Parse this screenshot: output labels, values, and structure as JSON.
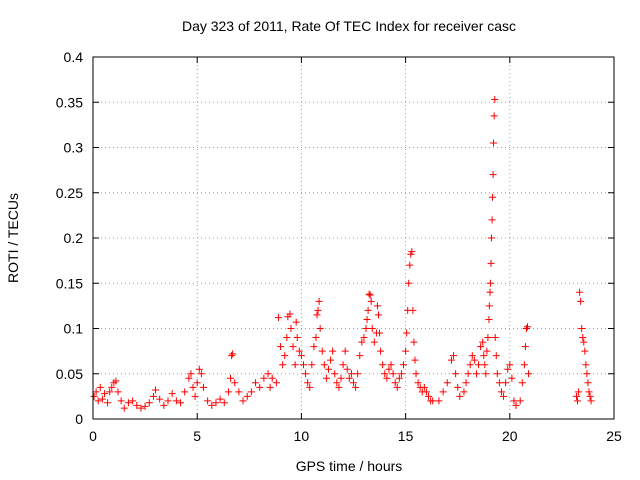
{
  "chart_data": {
    "type": "scatter",
    "title": "Day 323 of 2011, Rate Of TEC Index for receiver casc",
    "xlabel": "GPS time / hours",
    "ylabel": "ROTI / TECUs",
    "xlim": [
      0,
      25
    ],
    "ylim": [
      0,
      0.4
    ],
    "x_ticks": [
      0,
      5,
      10,
      15,
      20,
      25
    ],
    "x_tick_labels": [
      "0",
      "5",
      "10",
      "15",
      "20",
      "25"
    ],
    "y_ticks": [
      0,
      0.05,
      0.1,
      0.15,
      0.2,
      0.25,
      0.3,
      0.35,
      0.4
    ],
    "y_tick_labels": [
      "0",
      "0.05",
      "0.1",
      "0.15",
      "0.2",
      "0.25",
      "0.3",
      "0.35",
      "0.4"
    ],
    "grid": true,
    "marker": "plus",
    "color": "#ff0000",
    "points": [
      [
        0.05,
        0.025
      ],
      [
        0.15,
        0.03
      ],
      [
        0.25,
        0.02
      ],
      [
        0.35,
        0.035
      ],
      [
        0.45,
        0.022
      ],
      [
        0.55,
        0.028
      ],
      [
        0.7,
        0.018
      ],
      [
        0.8,
        0.03
      ],
      [
        0.9,
        0.035
      ],
      [
        1.0,
        0.04
      ],
      [
        1.1,
        0.042
      ],
      [
        1.2,
        0.03
      ],
      [
        1.35,
        0.02
      ],
      [
        1.5,
        0.012
      ],
      [
        1.7,
        0.018
      ],
      [
        1.9,
        0.02
      ],
      [
        2.1,
        0.015
      ],
      [
        2.3,
        0.012
      ],
      [
        2.5,
        0.014
      ],
      [
        2.7,
        0.018
      ],
      [
        2.9,
        0.025
      ],
      [
        3.0,
        0.032
      ],
      [
        3.2,
        0.022
      ],
      [
        3.4,
        0.015
      ],
      [
        3.6,
        0.02
      ],
      [
        3.8,
        0.028
      ],
      [
        4.0,
        0.02
      ],
      [
        4.2,
        0.018
      ],
      [
        4.4,
        0.03
      ],
      [
        4.6,
        0.045
      ],
      [
        4.7,
        0.05
      ],
      [
        4.8,
        0.035
      ],
      [
        4.9,
        0.025
      ],
      [
        5.0,
        0.04
      ],
      [
        5.1,
        0.055
      ],
      [
        5.2,
        0.05
      ],
      [
        5.3,
        0.035
      ],
      [
        5.5,
        0.02
      ],
      [
        5.7,
        0.015
      ],
      [
        5.9,
        0.018
      ],
      [
        6.1,
        0.022
      ],
      [
        6.3,
        0.018
      ],
      [
        6.5,
        0.03
      ],
      [
        6.6,
        0.045
      ],
      [
        6.65,
        0.07
      ],
      [
        6.7,
        0.072
      ],
      [
        6.8,
        0.04
      ],
      [
        7.0,
        0.03
      ],
      [
        7.2,
        0.02
      ],
      [
        7.4,
        0.025
      ],
      [
        7.6,
        0.03
      ],
      [
        7.8,
        0.04
      ],
      [
        8.0,
        0.035
      ],
      [
        8.2,
        0.045
      ],
      [
        8.4,
        0.05
      ],
      [
        8.5,
        0.035
      ],
      [
        8.6,
        0.045
      ],
      [
        8.8,
        0.04
      ],
      [
        8.9,
        0.112
      ],
      [
        9.0,
        0.08
      ],
      [
        9.1,
        0.06
      ],
      [
        9.2,
        0.07
      ],
      [
        9.3,
        0.09
      ],
      [
        9.35,
        0.113
      ],
      [
        9.45,
        0.116
      ],
      [
        9.5,
        0.1
      ],
      [
        9.6,
        0.08
      ],
      [
        9.7,
        0.06
      ],
      [
        9.75,
        0.107
      ],
      [
        9.8,
        0.09
      ],
      [
        9.9,
        0.075
      ],
      [
        10.0,
        0.07
      ],
      [
        10.1,
        0.06
      ],
      [
        10.2,
        0.05
      ],
      [
        10.3,
        0.04
      ],
      [
        10.4,
        0.035
      ],
      [
        10.5,
        0.06
      ],
      [
        10.6,
        0.08
      ],
      [
        10.7,
        0.09
      ],
      [
        10.75,
        0.115
      ],
      [
        10.8,
        0.12
      ],
      [
        10.85,
        0.13
      ],
      [
        10.9,
        0.1
      ],
      [
        11.0,
        0.075
      ],
      [
        11.1,
        0.06
      ],
      [
        11.2,
        0.045
      ],
      [
        11.3,
        0.055
      ],
      [
        11.4,
        0.065
      ],
      [
        11.5,
        0.075
      ],
      [
        11.6,
        0.05
      ],
      [
        11.7,
        0.04
      ],
      [
        11.8,
        0.035
      ],
      [
        11.9,
        0.045
      ],
      [
        12.0,
        0.06
      ],
      [
        12.1,
        0.075
      ],
      [
        12.2,
        0.055
      ],
      [
        12.3,
        0.045
      ],
      [
        12.4,
        0.05
      ],
      [
        12.5,
        0.04
      ],
      [
        12.6,
        0.035
      ],
      [
        12.7,
        0.05
      ],
      [
        12.8,
        0.07
      ],
      [
        12.9,
        0.085
      ],
      [
        13.0,
        0.09
      ],
      [
        13.1,
        0.1
      ],
      [
        13.15,
        0.11
      ],
      [
        13.2,
        0.12
      ],
      [
        13.25,
        0.138
      ],
      [
        13.3,
        0.137
      ],
      [
        13.35,
        0.13
      ],
      [
        13.4,
        0.1
      ],
      [
        13.5,
        0.085
      ],
      [
        13.6,
        0.095
      ],
      [
        13.65,
        0.125
      ],
      [
        13.7,
        0.115
      ],
      [
        13.75,
        0.095
      ],
      [
        13.8,
        0.075
      ],
      [
        13.9,
        0.06
      ],
      [
        14.0,
        0.05
      ],
      [
        14.1,
        0.045
      ],
      [
        14.2,
        0.055
      ],
      [
        14.3,
        0.06
      ],
      [
        14.4,
        0.05
      ],
      [
        14.5,
        0.04
      ],
      [
        14.6,
        0.035
      ],
      [
        14.7,
        0.045
      ],
      [
        14.8,
        0.05
      ],
      [
        14.9,
        0.06
      ],
      [
        15.0,
        0.075
      ],
      [
        15.05,
        0.095
      ],
      [
        15.1,
        0.12
      ],
      [
        15.15,
        0.15
      ],
      [
        15.2,
        0.17
      ],
      [
        15.25,
        0.182
      ],
      [
        15.3,
        0.185
      ],
      [
        15.35,
        0.12
      ],
      [
        15.4,
        0.085
      ],
      [
        15.45,
        0.065
      ],
      [
        15.5,
        0.05
      ],
      [
        15.6,
        0.04
      ],
      [
        15.7,
        0.035
      ],
      [
        15.8,
        0.03
      ],
      [
        15.9,
        0.035
      ],
      [
        16.0,
        0.03
      ],
      [
        16.1,
        0.025
      ],
      [
        16.2,
        0.02
      ],
      [
        16.3,
        0.02
      ],
      [
        16.6,
        0.02
      ],
      [
        16.8,
        0.03
      ],
      [
        17.0,
        0.04
      ],
      [
        17.2,
        0.065
      ],
      [
        17.3,
        0.07
      ],
      [
        17.4,
        0.05
      ],
      [
        17.5,
        0.035
      ],
      [
        17.6,
        0.025
      ],
      [
        17.8,
        0.03
      ],
      [
        17.9,
        0.04
      ],
      [
        18.0,
        0.05
      ],
      [
        18.1,
        0.06
      ],
      [
        18.2,
        0.07
      ],
      [
        18.3,
        0.065
      ],
      [
        18.4,
        0.05
      ],
      [
        18.5,
        0.06
      ],
      [
        18.6,
        0.08
      ],
      [
        18.7,
        0.085
      ],
      [
        18.75,
        0.07
      ],
      [
        18.8,
        0.06
      ],
      [
        18.85,
        0.05
      ],
      [
        18.9,
        0.075
      ],
      [
        18.95,
        0.09
      ],
      [
        19.0,
        0.11
      ],
      [
        19.02,
        0.125
      ],
      [
        19.05,
        0.14
      ],
      [
        19.07,
        0.15
      ],
      [
        19.1,
        0.172
      ],
      [
        19.12,
        0.2
      ],
      [
        19.15,
        0.22
      ],
      [
        19.17,
        0.245
      ],
      [
        19.2,
        0.27
      ],
      [
        19.22,
        0.305
      ],
      [
        19.25,
        0.335
      ],
      [
        19.28,
        0.353
      ],
      [
        19.3,
        0.09
      ],
      [
        19.35,
        0.07
      ],
      [
        19.4,
        0.05
      ],
      [
        19.5,
        0.04
      ],
      [
        19.6,
        0.03
      ],
      [
        19.7,
        0.025
      ],
      [
        19.8,
        0.04
      ],
      [
        19.9,
        0.055
      ],
      [
        20.0,
        0.06
      ],
      [
        20.1,
        0.045
      ],
      [
        20.2,
        0.02
      ],
      [
        20.3,
        0.015
      ],
      [
        20.5,
        0.02
      ],
      [
        20.6,
        0.04
      ],
      [
        20.7,
        0.06
      ],
      [
        20.75,
        0.08
      ],
      [
        20.8,
        0.1
      ],
      [
        20.85,
        0.102
      ],
      [
        20.9,
        0.05
      ],
      [
        23.2,
        0.025
      ],
      [
        23.25,
        0.02
      ],
      [
        23.3,
        0.03
      ],
      [
        23.35,
        0.14
      ],
      [
        23.4,
        0.13
      ],
      [
        23.45,
        0.1
      ],
      [
        23.5,
        0.09
      ],
      [
        23.55,
        0.085
      ],
      [
        23.6,
        0.075
      ],
      [
        23.65,
        0.06
      ],
      [
        23.7,
        0.05
      ],
      [
        23.75,
        0.04
      ],
      [
        23.8,
        0.03
      ],
      [
        23.85,
        0.025
      ],
      [
        23.9,
        0.02
      ]
    ]
  }
}
